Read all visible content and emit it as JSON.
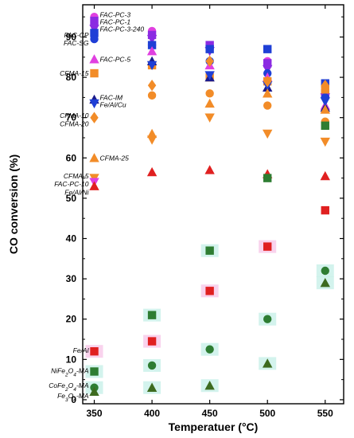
{
  "chart_data": {
    "type": "scatter",
    "xlabel": "Temperatuer (°C)",
    "ylabel": "CO conversion (%)",
    "xlim": [
      340,
      566
    ],
    "ylim": [
      -1,
      98
    ],
    "xticks": [
      350,
      400,
      450,
      500,
      550
    ],
    "yticks": [
      0,
      10,
      20,
      30,
      40,
      50,
      60,
      70,
      80,
      90
    ],
    "grid": false,
    "colors": {
      "magenta": "#e040e0",
      "violet": "#8b2be2",
      "blue": "#1f3fd6",
      "orange": "#f28c28",
      "red": "#e02020",
      "green": "#2e7d32",
      "olive": "#3d6b1f",
      "brown": "#8b3a1a",
      "navy": "#1a1a8c"
    },
    "series": [
      {
        "name": "FAC-PC-3",
        "color": "#e040e0",
        "marker": "circle",
        "x": [
          350,
          400,
          450,
          500,
          550
        ],
        "y": [
          95,
          91.5,
          87.5,
          84,
          78
        ]
      },
      {
        "name": "FAC-PC-1",
        "color": "#8b2be2",
        "marker": "square",
        "x": [
          350,
          400,
          450,
          500,
          550
        ],
        "y": [
          94,
          90.5,
          88,
          83.5,
          76
        ]
      },
      {
        "name": "FAC-PC-3-240",
        "color": "#8b2be2",
        "marker": "triangle-down",
        "x": [
          350,
          400,
          450,
          500,
          550
        ],
        "y": [
          92,
          89.5,
          86.5,
          82,
          75
        ]
      },
      {
        "name": "FAC-CP",
        "color": "#1f3fd6",
        "marker": "square",
        "x": [
          350,
          400,
          450,
          500,
          550
        ],
        "y": [
          91,
          88,
          87,
          87,
          78.5
        ]
      },
      {
        "name": "FAC-SG",
        "color": "#1f3fd6",
        "marker": "circle",
        "x": [
          350,
          400,
          450,
          500,
          550
        ],
        "y": [
          89.5,
          88,
          84,
          81,
          75
        ]
      },
      {
        "name": "FAC-PC-5",
        "color": "#e040e0",
        "marker": "triangle-up",
        "x": [
          350,
          400,
          450,
          500,
          550
        ],
        "y": [
          84.5,
          86.5,
          83,
          80,
          73
        ]
      },
      {
        "name": "CFMA-15",
        "color": "#f28c28",
        "marker": "square",
        "x": [
          350,
          400,
          450,
          500,
          550
        ],
        "y": [
          81,
          83,
          80,
          79,
          77
        ]
      },
      {
        "name": "FAC-IM",
        "color": "#1a1a8c",
        "marker": "triangle-up",
        "x": [
          350,
          400,
          450,
          500,
          550
        ],
        "y": [
          74.5,
          84,
          80,
          77.5,
          72.5
        ]
      },
      {
        "name": "Fe/Al/Cu",
        "color": "#1f3fd6",
        "marker": "triangle-down",
        "x": [
          350,
          400,
          450,
          500,
          550
        ],
        "y": [
          73.5,
          83,
          80.5,
          78,
          74
        ]
      },
      {
        "name": "CFMA-10",
        "color": "#f28c28",
        "marker": "diamond",
        "x": [
          350,
          400,
          450,
          500,
          550
        ],
        "y": [
          70,
          78,
          84,
          79,
          78
        ]
      },
      {
        "name": "CFMA-20",
        "color": "#f28c28",
        "marker": "circle",
        "x": [
          400,
          450,
          500,
          550
        ],
        "y": [
          75.5,
          76,
          73,
          69
        ]
      },
      {
        "name": "CFMA-25",
        "color": "#f28c28",
        "marker": "triangle-up",
        "x": [
          350,
          400,
          450,
          500,
          550
        ],
        "y": [
          60,
          66,
          73.5,
          76,
          72
        ]
      },
      {
        "name": "CFMA-5",
        "color": "#f28c28",
        "marker": "triangle-down",
        "x": [
          350,
          400,
          450,
          500,
          550
        ],
        "y": [
          55,
          64.5,
          70,
          66,
          64
        ]
      },
      {
        "name": "FAC-PC-10",
        "color": "#e040e0",
        "marker": "triangle-down",
        "x": [
          350
        ],
        "y": [
          54
        ]
      },
      {
        "name": "Fe/Al/Ni",
        "color": "#e02020",
        "marker": "triangle-up",
        "x": [
          350,
          400,
          450,
          500,
          550
        ],
        "y": [
          53,
          56.5,
          57,
          56,
          55.5
        ]
      },
      {
        "name": "Fe/Al",
        "color": "#e02020",
        "marker": "square",
        "x": [
          350,
          400,
          450,
          500,
          550
        ],
        "y": [
          12,
          14.5,
          27,
          38,
          47
        ]
      },
      {
        "name": "NiFe2O4-MA",
        "color": "#2e7d32",
        "marker": "square",
        "x": [
          350,
          400,
          450,
          500,
          550
        ],
        "y": [
          7,
          21,
          37,
          55,
          68
        ]
      },
      {
        "name": "CoFe2O4-MA",
        "color": "#2e7d32",
        "marker": "circle",
        "x": [
          350,
          400,
          450,
          500,
          550
        ],
        "y": [
          3,
          8.5,
          12.5,
          20,
          32
        ]
      },
      {
        "name": "Fe3O4-MA",
        "color": "#3d6b1f",
        "marker": "triangle-up",
        "x": [
          350,
          400,
          450,
          500,
          550
        ],
        "y": [
          2,
          3,
          3.5,
          9,
          29
        ]
      }
    ],
    "highlight_points": [
      {
        "series": "Fe/Al",
        "x": 400,
        "y": 14.5,
        "color": "#f8c8e8"
      },
      {
        "series": "Fe/Al",
        "x": 450,
        "y": 27,
        "color": "#f8c8e8"
      },
      {
        "series": "Fe/Al",
        "x": 500,
        "y": 38,
        "color": "#f8c8e8"
      },
      {
        "series": "Fe/Al",
        "x": 350,
        "y": 12,
        "color": "#f8c8e8"
      },
      {
        "series": "NiFe2O4-MA",
        "x": 350,
        "y": 7,
        "color": "#c8f0e8"
      },
      {
        "series": "NiFe2O4-MA",
        "x": 400,
        "y": 21,
        "color": "#c8f0e8"
      },
      {
        "series": "NiFe2O4-MA",
        "x": 450,
        "y": 37,
        "color": "#c8f0e8"
      },
      {
        "series": "CoFe2O4-MA",
        "x": 350,
        "y": 3,
        "color": "#c8f0e8"
      },
      {
        "series": "CoFe2O4-MA",
        "x": 400,
        "y": 8.5,
        "color": "#c8f0e8"
      },
      {
        "series": "CoFe2O4-MA",
        "x": 450,
        "y": 12.5,
        "color": "#c8f0e8"
      },
      {
        "series": "CoFe2O4-MA",
        "x": 500,
        "y": 20,
        "color": "#c8f0e8"
      },
      {
        "series": "CoFe2O4-MA",
        "x": 550,
        "y": 32,
        "color": "#c8f0e8"
      },
      {
        "series": "Fe3O4-MA",
        "x": 400,
        "y": 3,
        "color": "#c8f0e8"
      },
      {
        "series": "Fe3O4-MA",
        "x": 450,
        "y": 3.5,
        "color": "#c8f0e8"
      },
      {
        "series": "Fe3O4-MA",
        "x": 500,
        "y": 9,
        "color": "#c8f0e8"
      },
      {
        "series": "Fe3O4-MA",
        "x": 550,
        "y": 29,
        "color": "#c8f0e8"
      }
    ],
    "annotations": [
      {
        "html": "FAC-PC-3",
        "x": 350,
        "y": 95.5,
        "anchor": "start"
      },
      {
        "html": "FAC-PC-1",
        "x": 350,
        "y": 93.8,
        "anchor": "start"
      },
      {
        "html": "FAC-PC-3-240",
        "x": 350,
        "y": 92.0,
        "anchor": "start"
      },
      {
        "html": "FAC-CP",
        "x": 350,
        "y": 90.5,
        "anchor": "end"
      },
      {
        "html": "FAC-SG",
        "x": 350,
        "y": 88.5,
        "anchor": "end"
      },
      {
        "html": "FAC-PC-5",
        "x": 350,
        "y": 84.5,
        "anchor": "start"
      },
      {
        "html": "CFMA-15",
        "x": 350,
        "y": 81.0,
        "anchor": "end"
      },
      {
        "html": "FAC-IM",
        "x": 350,
        "y": 75.0,
        "anchor": "start"
      },
      {
        "html": "Fe/Al/Cu",
        "x": 350,
        "y": 73.2,
        "anchor": "start"
      },
      {
        "html": "CFMA-10",
        "x": 350,
        "y": 70.5,
        "anchor": "end"
      },
      {
        "html": "CFMA-20",
        "x": 350,
        "y": 68.5,
        "anchor": "end"
      },
      {
        "html": "CFMA-25",
        "x": 350,
        "y": 60.0,
        "anchor": "start"
      },
      {
        "html": "CFMA-5",
        "x": 350,
        "y": 55.5,
        "anchor": "end"
      },
      {
        "html": "FAC-PC-10",
        "x": 350,
        "y": 53.5,
        "anchor": "end"
      },
      {
        "html": "Fe/Al/Ni",
        "x": 350,
        "y": 51.5,
        "anchor": "end"
      },
      {
        "html": "Fe/Al",
        "x": 350,
        "y": 12.2,
        "anchor": "end"
      },
      {
        "html": "NiFe<sub>2</sub>O<sub>4</sub>-MA",
        "x": 350,
        "y": 7.2,
        "anchor": "end"
      },
      {
        "html": "CoFe<sub>2</sub>O<sub>4</sub>-MA",
        "x": 350,
        "y": 3.5,
        "anchor": "end"
      },
      {
        "html": "Fe<sub>3</sub>O<sub>4</sub>-MA",
        "x": 350,
        "y": 1.0,
        "anchor": "end"
      }
    ]
  }
}
